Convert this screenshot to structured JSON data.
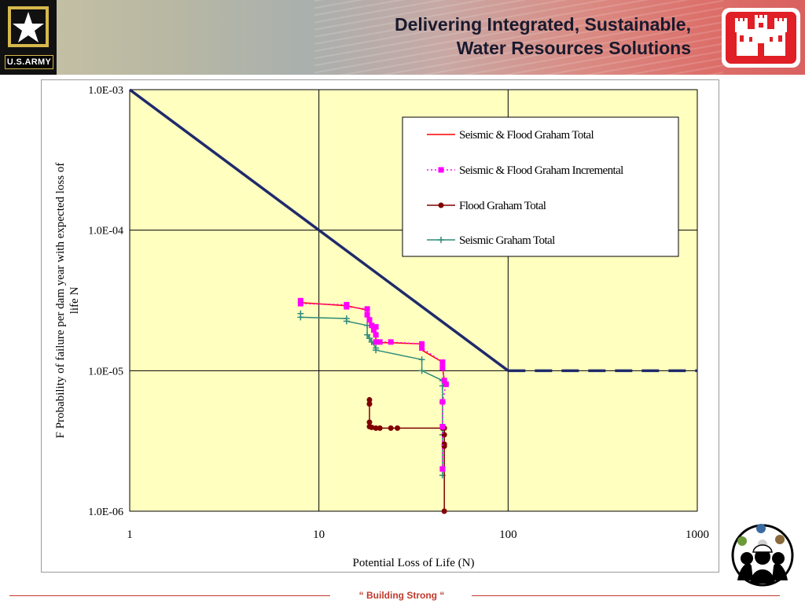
{
  "header": {
    "title_line1": "Delivering Integrated, Sustainable,",
    "title_line2": "Water Resources Solutions",
    "army_label": "U.S.ARMY",
    "left_logo_icon": "us-army-star-logo",
    "right_logo_icon": "usace-castle-logo",
    "colors": {
      "gradient_start": "#c9c3a4",
      "gradient_end": "#d9615f",
      "castle_red": "#e01f26"
    }
  },
  "chart_data": {
    "type": "line",
    "title": "",
    "xlabel": "Potential Loss of Life (N)",
    "ylabel": "F Probability of failure per dam year with expected loss of life N",
    "x_scale": "log",
    "y_scale": "log",
    "xlim": [
      1,
      1000
    ],
    "ylim": [
      1e-06,
      0.001
    ],
    "x_ticks": [
      1,
      10,
      100,
      1000
    ],
    "x_tick_labels": [
      "1",
      "10",
      "100",
      "1000"
    ],
    "y_ticks": [
      1e-06,
      1e-05,
      0.0001,
      0.001
    ],
    "y_tick_labels": [
      "1.0E-06",
      "1.0E-05",
      "1.0E-04",
      "1.0E-03"
    ],
    "grid": true,
    "plot_background": "#ffffc0",
    "legend_position": "top-right",
    "guideline": {
      "color": "#1f2a6b",
      "solid": [
        [
          1,
          0.001
        ],
        [
          100,
          1e-05
        ]
      ],
      "dashed": [
        [
          100,
          1e-05
        ],
        [
          1000,
          1e-05
        ]
      ]
    },
    "series": [
      {
        "name": "Seismic & Flood Graham Total",
        "color": "#ff0000",
        "marker": "none",
        "line": "solid",
        "x": [
          8,
          14,
          18,
          18.5,
          19,
          19.5,
          20,
          20,
          21,
          24,
          35,
          35,
          45,
          45,
          46,
          47,
          47
        ],
        "y": [
          3.05e-05,
          2.9e-05,
          2.7e-05,
          2.3e-05,
          2.1e-05,
          1.95e-05,
          1.8e-05,
          1.58e-05,
          1.58e-05,
          1.58e-05,
          1.55e-05,
          1.4e-05,
          1.15e-05,
          1.05e-05,
          8.5e-06,
          8e-06,
          7.8e-06
        ]
      },
      {
        "name": "Seismic & Flood Graham Incremental",
        "color": "#ff00ff",
        "marker": "square",
        "line": "dotted",
        "x": [
          8,
          8,
          14,
          14,
          18,
          18,
          18.5,
          19,
          19.5,
          20,
          20,
          20,
          21,
          24,
          35,
          35,
          45,
          45,
          46,
          47,
          45,
          45,
          45
        ],
        "y": [
          3.15e-05,
          3e-05,
          2.95e-05,
          2.85e-05,
          2.75e-05,
          2.5e-05,
          2.3e-05,
          2.1e-05,
          1.95e-05,
          2.05e-05,
          1.8e-05,
          1.6e-05,
          1.6e-05,
          1.6e-05,
          1.55e-05,
          1.45e-05,
          1.15e-05,
          1.05e-05,
          8.5e-06,
          8e-06,
          6e-06,
          4e-06,
          2e-06
        ]
      },
      {
        "name": "Flood Graham Total",
        "color": "#800000",
        "marker": "circle",
        "line": "solid",
        "x": [
          18.5,
          18.5,
          18.5,
          18.5,
          19,
          20,
          21,
          24,
          26,
          45,
          46,
          46,
          46,
          46,
          46
        ],
        "y": [
          6.2e-06,
          5.8e-06,
          4.3e-06,
          4e-06,
          3.95e-06,
          3.9e-06,
          3.9e-06,
          3.9e-06,
          3.9e-06,
          3.9e-06,
          3.9e-06,
          3.5e-06,
          3e-06,
          2.9e-06,
          1e-06
        ]
      },
      {
        "name": "Seismic Graham Total",
        "color": "#2e8b7a",
        "marker": "plus",
        "line": "solid",
        "x": [
          8,
          8,
          14,
          14,
          18,
          18,
          18.5,
          19,
          20,
          20,
          35,
          35,
          45,
          45,
          45,
          45,
          45
        ],
        "y": [
          2.55e-05,
          2.4e-05,
          2.35e-05,
          2.25e-05,
          2.1e-05,
          1.8e-05,
          1.7e-05,
          1.6e-05,
          1.45e-05,
          1.4e-05,
          1.2e-05,
          1e-05,
          8.5e-06,
          7.8e-06,
          6e-06,
          3.5e-06,
          1.8e-06
        ]
      }
    ]
  },
  "footer": {
    "slogan": "“ Building  Strong “",
    "team_logo_icon": "team-of-people-logo",
    "color": "#c0392b"
  }
}
